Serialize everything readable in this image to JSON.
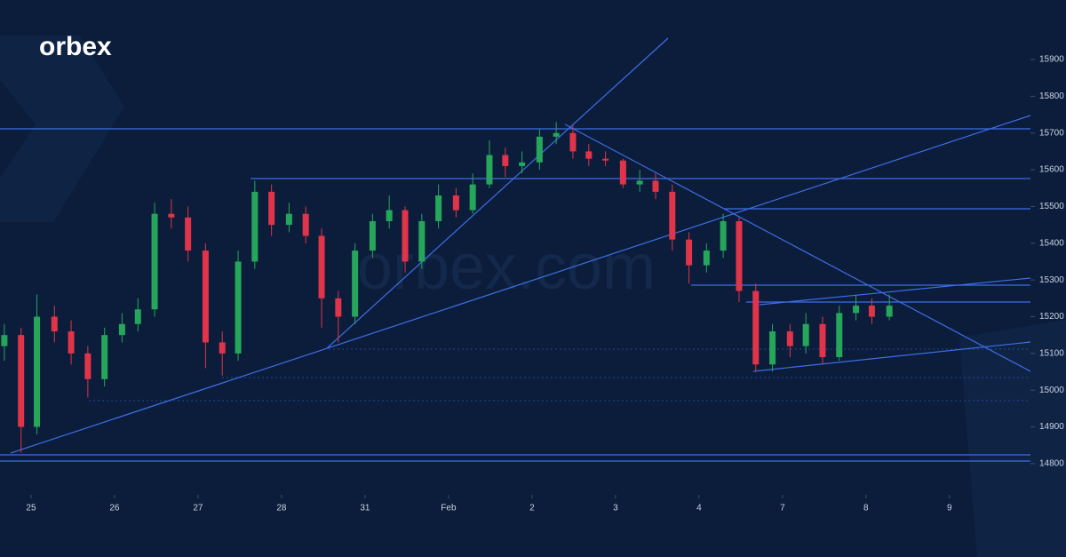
{
  "branding": {
    "logo": "orbex",
    "watermark": "orbex.com"
  },
  "chart_data": {
    "type": "candlestick",
    "up_color": "#26a65b",
    "down_color": "#e0344a",
    "grid": false,
    "xlim": [
      -0.372,
      11.97
    ],
    "ylim": [
      14720,
      16062
    ],
    "xticks": [
      {
        "value": 0,
        "label": "25"
      },
      {
        "value": 1,
        "label": "26"
      },
      {
        "value": 2,
        "label": "27"
      },
      {
        "value": 3,
        "label": "28"
      },
      {
        "value": 4,
        "label": "31"
      },
      {
        "value": 5,
        "label": "Feb"
      },
      {
        "value": 6,
        "label": "2"
      },
      {
        "value": 7,
        "label": "3"
      },
      {
        "value": 8,
        "label": "4"
      },
      {
        "value": 9,
        "label": "7"
      },
      {
        "value": 10,
        "label": "8"
      },
      {
        "value": 11,
        "label": "9"
      }
    ],
    "yticks": [
      14800,
      14900,
      15000,
      15100,
      15200,
      15300,
      15400,
      15500,
      15600,
      15700,
      15800,
      15900
    ],
    "x": [
      -0.32,
      -0.12,
      0.07,
      0.28,
      0.48,
      0.68,
      0.88,
      1.09,
      1.28,
      1.48,
      1.68,
      1.88,
      2.09,
      2.29,
      2.48,
      2.68,
      2.88,
      3.09,
      3.29,
      3.48,
      3.68,
      3.88,
      4.09,
      4.29,
      4.48,
      4.68,
      4.88,
      5.09,
      5.29,
      5.49,
      5.68,
      5.88,
      6.09,
      6.29,
      6.49,
      6.68,
      6.88,
      7.09,
      7.29,
      7.48,
      7.68,
      7.88,
      8.09,
      8.29,
      8.48,
      8.68,
      8.88,
      9.09,
      9.28,
      9.48,
      9.68,
      9.88,
      10.07,
      10.28
    ],
    "open": [
      15120,
      15150,
      14900,
      15200,
      15160,
      15100,
      15030,
      15150,
      15180,
      15220,
      15480,
      15470,
      15380,
      15130,
      15100,
      15350,
      15540,
      15450,
      15480,
      15420,
      15250,
      15200,
      15380,
      15460,
      15490,
      15350,
      15460,
      15530,
      15490,
      15560,
      15640,
      15610,
      15620,
      15690,
      15700,
      15650,
      15630,
      15625,
      15560,
      15570,
      15540,
      15410,
      15340,
      15380,
      15460,
      15270,
      15070,
      15160,
      15120,
      15180,
      15090,
      15210,
      15230,
      15200
    ],
    "high": [
      15180,
      15170,
      15260,
      15230,
      15190,
      15120,
      15170,
      15210,
      15250,
      15510,
      15520,
      15500,
      15400,
      15160,
      15380,
      15570,
      15560,
      15510,
      15500,
      15440,
      15270,
      15400,
      15480,
      15530,
      15500,
      15480,
      15560,
      15550,
      15590,
      15680,
      15660,
      15650,
      15710,
      15730,
      15720,
      15670,
      15650,
      15630,
      15600,
      15590,
      15560,
      15430,
      15400,
      15480,
      15470,
      15290,
      15180,
      15180,
      15210,
      15200,
      15230,
      15260,
      15250,
      15260
    ],
    "low": [
      15080,
      14830,
      14880,
      15130,
      15070,
      14980,
      15010,
      15130,
      15160,
      15200,
      15440,
      15350,
      15060,
      15040,
      15080,
      15330,
      15420,
      15430,
      15400,
      15170,
      15130,
      15180,
      15360,
      15440,
      15320,
      15330,
      15440,
      15470,
      15480,
      15550,
      15580,
      15590,
      15600,
      15670,
      15630,
      15610,
      15610,
      15550,
      15540,
      15520,
      15380,
      15290,
      15320,
      15360,
      15240,
      15050,
      15050,
      15090,
      15100,
      15070,
      15080,
      15190,
      15180,
      15190
    ],
    "close": [
      15150,
      14900,
      15200,
      15160,
      15100,
      15030,
      15150,
      15180,
      15220,
      15480,
      15470,
      15380,
      15130,
      15100,
      15350,
      15540,
      15450,
      15480,
      15420,
      15250,
      15200,
      15380,
      15460,
      15490,
      15350,
      15460,
      15530,
      15490,
      15560,
      15640,
      15610,
      15620,
      15690,
      15700,
      15650,
      15630,
      15625,
      15560,
      15570,
      15540,
      15410,
      15340,
      15380,
      15460,
      15270,
      15070,
      15160,
      15120,
      15180,
      15090,
      15210,
      15230,
      15200,
      15230
    ]
  }
}
